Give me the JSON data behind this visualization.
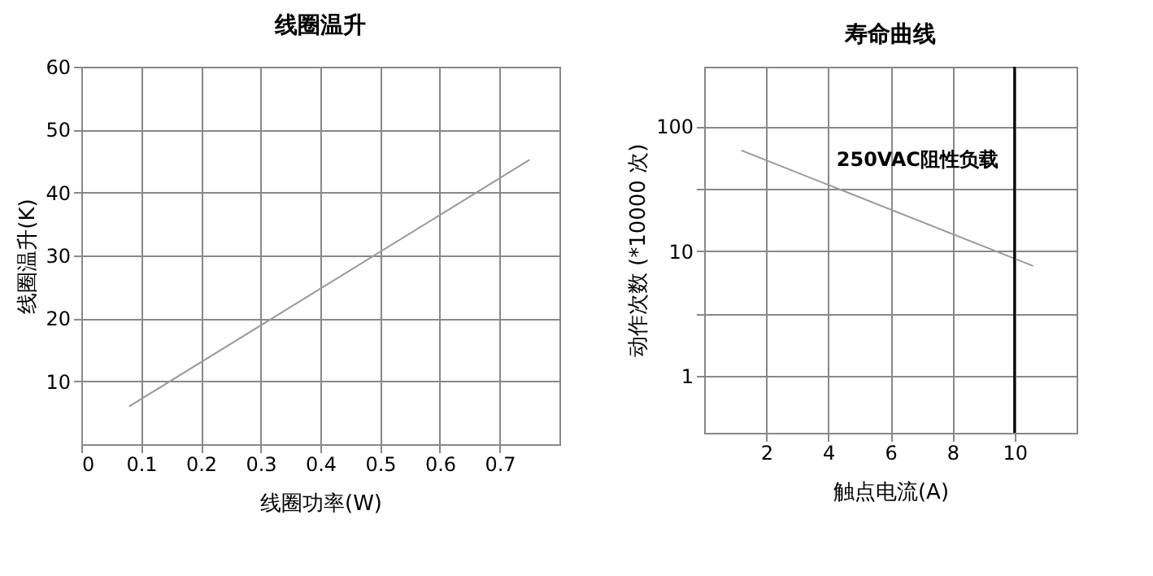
{
  "chart_data": [
    {
      "type": "line",
      "title": "线圈温升",
      "xlabel": "线圈功率(W)",
      "ylabel": "线圈温升(K)",
      "xlim": [
        0,
        0.8
      ],
      "xticks": [
        0,
        0.1,
        0.2,
        0.3,
        0.4,
        0.5,
        0.6,
        0.7
      ],
      "ylim": [
        0,
        60
      ],
      "yticks": [
        10,
        20,
        30,
        40,
        50,
        60
      ],
      "grid": true,
      "series": [
        {
          "color": "#999999",
          "x": [
            0.08,
            0.75
          ],
          "values": [
            6,
            45.2
          ]
        }
      ]
    },
    {
      "type": "line",
      "title": "寿命曲线",
      "xlabel": "触点电流(A)",
      "ylabel": "动作次数 (*10000 次)",
      "log": "y",
      "xlim": [
        0,
        12
      ],
      "xticks": [
        2,
        4,
        6,
        8,
        10
      ],
      "ylim": [
        0.35,
        300
      ],
      "yticks": [
        1,
        {
          "value": 3.16,
          "label": null
        },
        10,
        {
          "value": 31.6,
          "label": null
        },
        100
      ],
      "grid": true,
      "series": [
        {
          "color": "#999999",
          "x": [
            1.2,
            10.6
          ],
          "values": [
            64,
            7.6
          ]
        }
      ],
      "ref_lines": [
        {
          "axis": "x",
          "value": 10,
          "color": "#000000"
        }
      ],
      "annotations": [
        "250VAC阻性负载"
      ]
    }
  ]
}
